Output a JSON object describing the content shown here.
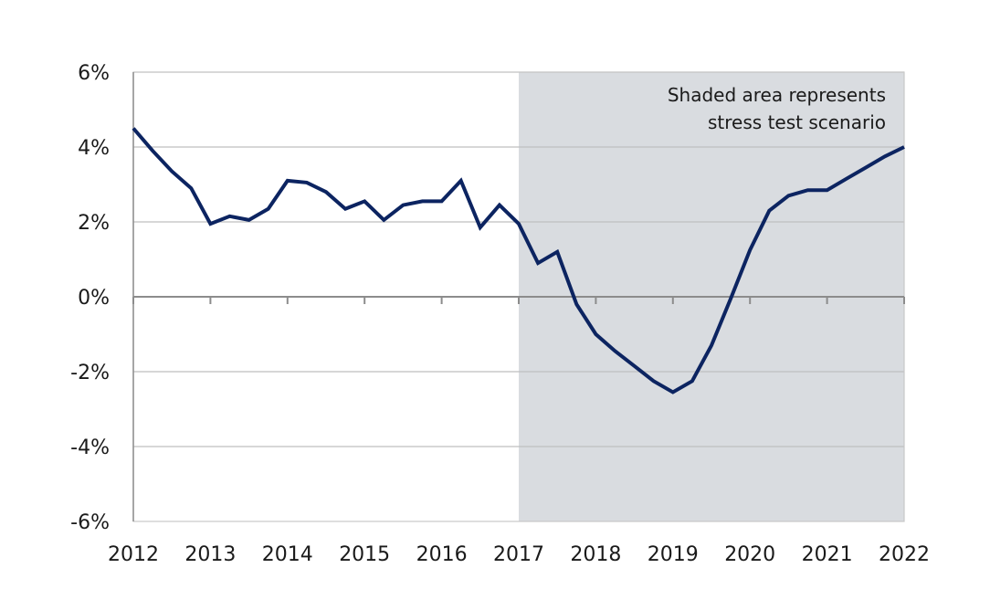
{
  "chart_data": {
    "type": "line",
    "title": "",
    "xlabel": "",
    "ylabel": "",
    "x_ticks": [
      "2012",
      "2013",
      "2014",
      "2015",
      "2016",
      "2017",
      "2018",
      "2019",
      "2020",
      "2021",
      "2022"
    ],
    "y_ticks": [
      "6%",
      "4%",
      "2%",
      "0%",
      "-2%",
      "-4%",
      "-6%"
    ],
    "ylim": [
      -6,
      6
    ],
    "xlim": [
      2012,
      2022
    ],
    "grid": "horizontal",
    "shaded_region": {
      "x_start": 2017,
      "x_end": 2022,
      "color": "#d9dce0"
    },
    "annotation": [
      "Shaded area represents",
      "stress test scenario"
    ],
    "series": [
      {
        "color": "#0c2461",
        "x": [
          2012.0,
          2012.25,
          2012.5,
          2012.75,
          2013.0,
          2013.25,
          2013.5,
          2013.75,
          2014.0,
          2014.25,
          2014.5,
          2014.75,
          2015.0,
          2015.25,
          2015.5,
          2015.75,
          2016.0,
          2016.25,
          2016.5,
          2016.75,
          2017.0,
          2017.25,
          2017.5,
          2017.75,
          2018.0,
          2018.25,
          2018.5,
          2018.75,
          2019.0,
          2019.25,
          2019.5,
          2019.75,
          2020.0,
          2020.25,
          2020.5,
          2020.75,
          2021.0,
          2021.25,
          2021.5,
          2021.75,
          2022.0
        ],
        "values": [
          4.5,
          3.9,
          3.35,
          2.9,
          1.95,
          2.15,
          2.05,
          2.35,
          3.1,
          3.05,
          2.8,
          2.35,
          2.55,
          2.05,
          2.45,
          2.55,
          2.55,
          3.1,
          1.85,
          2.45,
          1.95,
          0.9,
          1.2,
          -0.2,
          -1.0,
          -1.45,
          -1.85,
          -2.25,
          -2.55,
          -2.25,
          -1.3,
          -0.05,
          1.25,
          2.3,
          2.7,
          2.85,
          2.85,
          3.15,
          3.45,
          3.75,
          4.0
        ]
      }
    ]
  }
}
